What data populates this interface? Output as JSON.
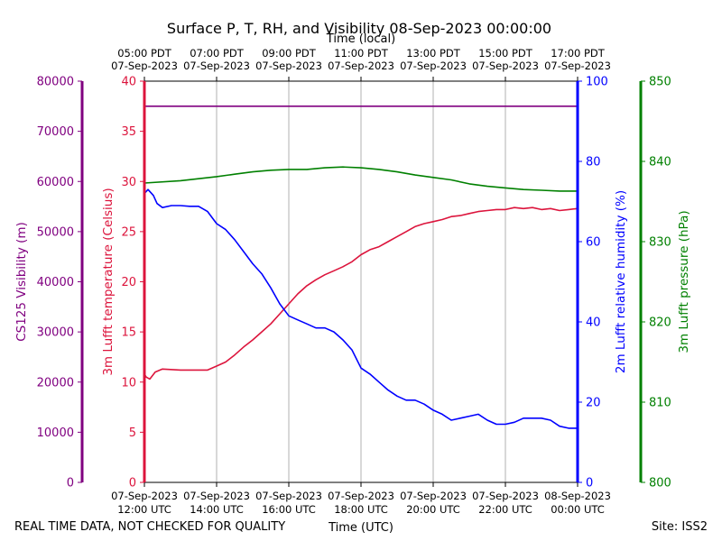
{
  "title": "Surface P, T, RH, and Visibility 08-Sep-2023 00:00:00",
  "top_axis_label": "Time (local)",
  "bottom_axis_label": "Time (UTC)",
  "footer_left": "REAL TIME DATA, NOT CHECKED FOR QUALITY",
  "footer_right": "Site: ISS2",
  "colors": {
    "visibility": "#800080",
    "temperature": "#dc143c",
    "humidity": "#0000ff",
    "pressure": "#008000",
    "grid": "#b0b0b0"
  },
  "chart_data": {
    "type": "line",
    "x_range": [
      "07-Sep-2023 12:00 UTC",
      "08-Sep-2023 00:00 UTC"
    ],
    "top_ticks": [
      {
        "t": 12,
        "time": "05:00 PDT",
        "date": "07-Sep-2023"
      },
      {
        "t": 14,
        "time": "07:00 PDT",
        "date": "07-Sep-2023"
      },
      {
        "t": 16,
        "time": "09:00 PDT",
        "date": "07-Sep-2023"
      },
      {
        "t": 18,
        "time": "11:00 PDT",
        "date": "07-Sep-2023"
      },
      {
        "t": 20,
        "time": "13:00 PDT",
        "date": "07-Sep-2023"
      },
      {
        "t": 22,
        "time": "15:00 PDT",
        "date": "07-Sep-2023"
      },
      {
        "t": 24,
        "time": "17:00 PDT",
        "date": "07-Sep-2023"
      }
    ],
    "bottom_ticks": [
      {
        "t": 12,
        "date": "07-Sep-2023",
        "time": "12:00 UTC"
      },
      {
        "t": 14,
        "date": "07-Sep-2023",
        "time": "14:00 UTC"
      },
      {
        "t": 16,
        "date": "07-Sep-2023",
        "time": "16:00 UTC"
      },
      {
        "t": 18,
        "date": "07-Sep-2023",
        "time": "18:00 UTC"
      },
      {
        "t": 20,
        "date": "07-Sep-2023",
        "time": "20:00 UTC"
      },
      {
        "t": 22,
        "date": "07-Sep-2023",
        "time": "22:00 UTC"
      },
      {
        "t": 24,
        "date": "08-Sep-2023",
        "time": "00:00 UTC"
      }
    ],
    "axes": {
      "visibility": {
        "label": "CS125 Visibility (m)",
        "ylim": [
          0,
          80000
        ],
        "ticks": [
          0,
          10000,
          20000,
          30000,
          40000,
          50000,
          60000,
          70000,
          80000
        ]
      },
      "temperature": {
        "label": "3m Lufft temperature (Celsius)",
        "ylim": [
          0,
          40
        ],
        "ticks": [
          0,
          5,
          10,
          15,
          20,
          25,
          30,
          35,
          40
        ]
      },
      "humidity": {
        "label": "2m Lufft relative humidity (%)",
        "ylim": [
          0,
          100
        ],
        "ticks": [
          0,
          20,
          40,
          60,
          80,
          100
        ]
      },
      "pressure": {
        "label": "3m Lufft pressure (hPa)",
        "ylim": [
          800,
          850
        ],
        "ticks": [
          800,
          810,
          820,
          830,
          840,
          850
        ]
      }
    },
    "grid": "vertical",
    "series": [
      {
        "key": "visibility",
        "axis": "visibility",
        "x": [
          12,
          24
        ],
        "y": [
          75000,
          75000
        ]
      },
      {
        "key": "temperature",
        "axis": "temperature",
        "x": [
          12,
          12.05,
          12.15,
          12.3,
          12.5,
          13,
          13.5,
          13.75,
          14,
          14.25,
          14.5,
          14.75,
          15,
          15.25,
          15.5,
          15.75,
          16,
          16.25,
          16.5,
          16.75,
          17,
          17.25,
          17.5,
          17.75,
          18,
          18.25,
          18.5,
          18.75,
          19,
          19.25,
          19.5,
          19.75,
          20,
          20.25,
          20.5,
          20.75,
          21,
          21.25,
          21.5,
          21.75,
          22,
          22.25,
          22.5,
          22.75,
          23,
          23.25,
          23.5,
          23.75,
          24
        ],
        "y": [
          10.8,
          10.5,
          10.3,
          11.0,
          11.3,
          11.2,
          11.2,
          11.2,
          11.6,
          12.0,
          12.7,
          13.5,
          14.2,
          15.0,
          15.8,
          16.8,
          17.8,
          18.8,
          19.6,
          20.2,
          20.7,
          21.1,
          21.5,
          22.0,
          22.7,
          23.2,
          23.5,
          24.0,
          24.5,
          25.0,
          25.5,
          25.8,
          26.0,
          26.2,
          26.5,
          26.6,
          26.8,
          27.0,
          27.1,
          27.2,
          27.2,
          27.4,
          27.3,
          27.4,
          27.2,
          27.3,
          27.1,
          27.2,
          27.3
        ]
      },
      {
        "key": "humidity",
        "axis": "humidity",
        "x": [
          12,
          12.1,
          12.25,
          12.35,
          12.5,
          12.75,
          13,
          13.25,
          13.5,
          13.75,
          14,
          14.25,
          14.5,
          14.75,
          15,
          15.25,
          15.5,
          15.75,
          16,
          16.25,
          16.5,
          16.75,
          17,
          17.25,
          17.5,
          17.75,
          18,
          18.25,
          18.5,
          18.75,
          19,
          19.25,
          19.5,
          19.75,
          20,
          20.25,
          20.5,
          20.75,
          21,
          21.25,
          21.5,
          21.75,
          22,
          22.25,
          22.5,
          22.75,
          23,
          23.25,
          23.5,
          23.75,
          24
        ],
        "y": [
          72,
          73,
          71.5,
          69.5,
          68.5,
          69,
          69,
          68.8,
          68.8,
          67.5,
          64.5,
          63,
          60.5,
          57.5,
          54.5,
          52,
          48.5,
          44.5,
          41.5,
          40.5,
          39.5,
          38.5,
          38.5,
          37.5,
          35.5,
          33,
          28.5,
          27,
          25,
          23,
          21.5,
          20.5,
          20.5,
          19.5,
          18,
          17,
          15.5,
          16,
          16.5,
          17,
          15.5,
          14.5,
          14.5,
          15,
          16,
          16,
          16,
          15.5,
          14,
          13.5,
          13.5
        ]
      },
      {
        "key": "pressure",
        "axis": "pressure",
        "x": [
          12,
          13,
          14,
          14.5,
          15,
          15.5,
          16,
          16.5,
          17,
          17.5,
          18,
          18.5,
          19,
          19.5,
          20,
          20.5,
          21,
          21.5,
          22,
          22.5,
          23,
          23.5,
          24
        ],
        "y": [
          837.3,
          837.6,
          838.1,
          838.4,
          838.7,
          838.9,
          839.0,
          839.0,
          839.2,
          839.3,
          839.2,
          839.0,
          838.7,
          838.3,
          838.0,
          837.7,
          837.2,
          836.9,
          836.7,
          836.5,
          836.4,
          836.3,
          836.3
        ]
      }
    ]
  }
}
